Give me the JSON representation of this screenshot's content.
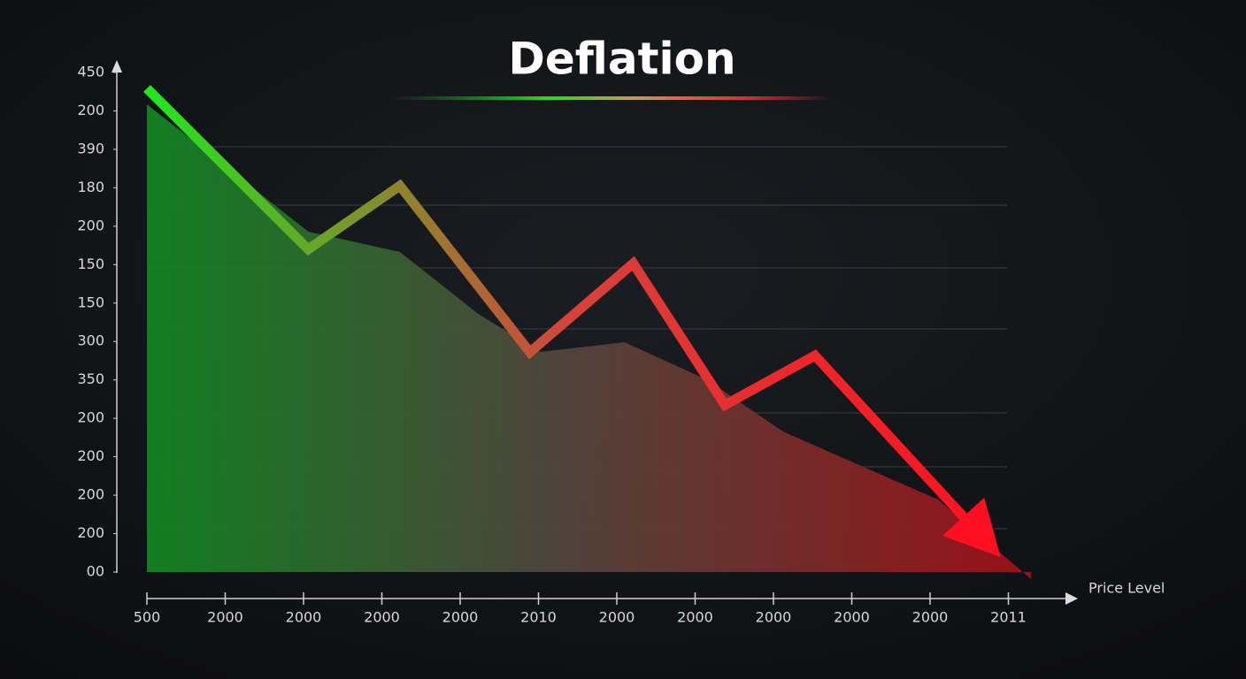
{
  "chart_data": {
    "type": "line",
    "title": "Deflation",
    "x_label": "Price Level",
    "categories": [
      "500",
      "2000",
      "2000",
      "2000",
      "2000",
      "2010",
      "2000",
      "2000",
      "2000",
      "2000",
      "2000",
      "2011"
    ],
    "y_axis_labels": [
      "450",
      "200",
      "390",
      "180",
      "200",
      "150",
      "150",
      "300",
      "350",
      "200",
      "200",
      "200",
      "200",
      "00"
    ],
    "ylim": [
      0,
      450
    ],
    "series": [
      {
        "x": [
          0,
          2.06,
          3.23,
          4.89,
          6.21,
          7.38,
          8.53,
          10.9
        ],
        "values": [
          435.7,
          290.7,
          348,
          198,
          278,
          150.5,
          195,
          13.5
        ],
        "colors": [
          "#22e61e",
          "#d6423a",
          "#ff1020"
        ]
      }
    ],
    "area": {
      "x": [
        0,
        2.06,
        3.23,
        4.23,
        5.02,
        6.1,
        7.16,
        8.12,
        10.1,
        11.29
      ],
      "values": [
        421.3,
        306.6,
        288.3,
        232.6,
        198.3,
        207,
        172.8,
        126.6,
        65.3,
        -6.4
      ]
    }
  }
}
